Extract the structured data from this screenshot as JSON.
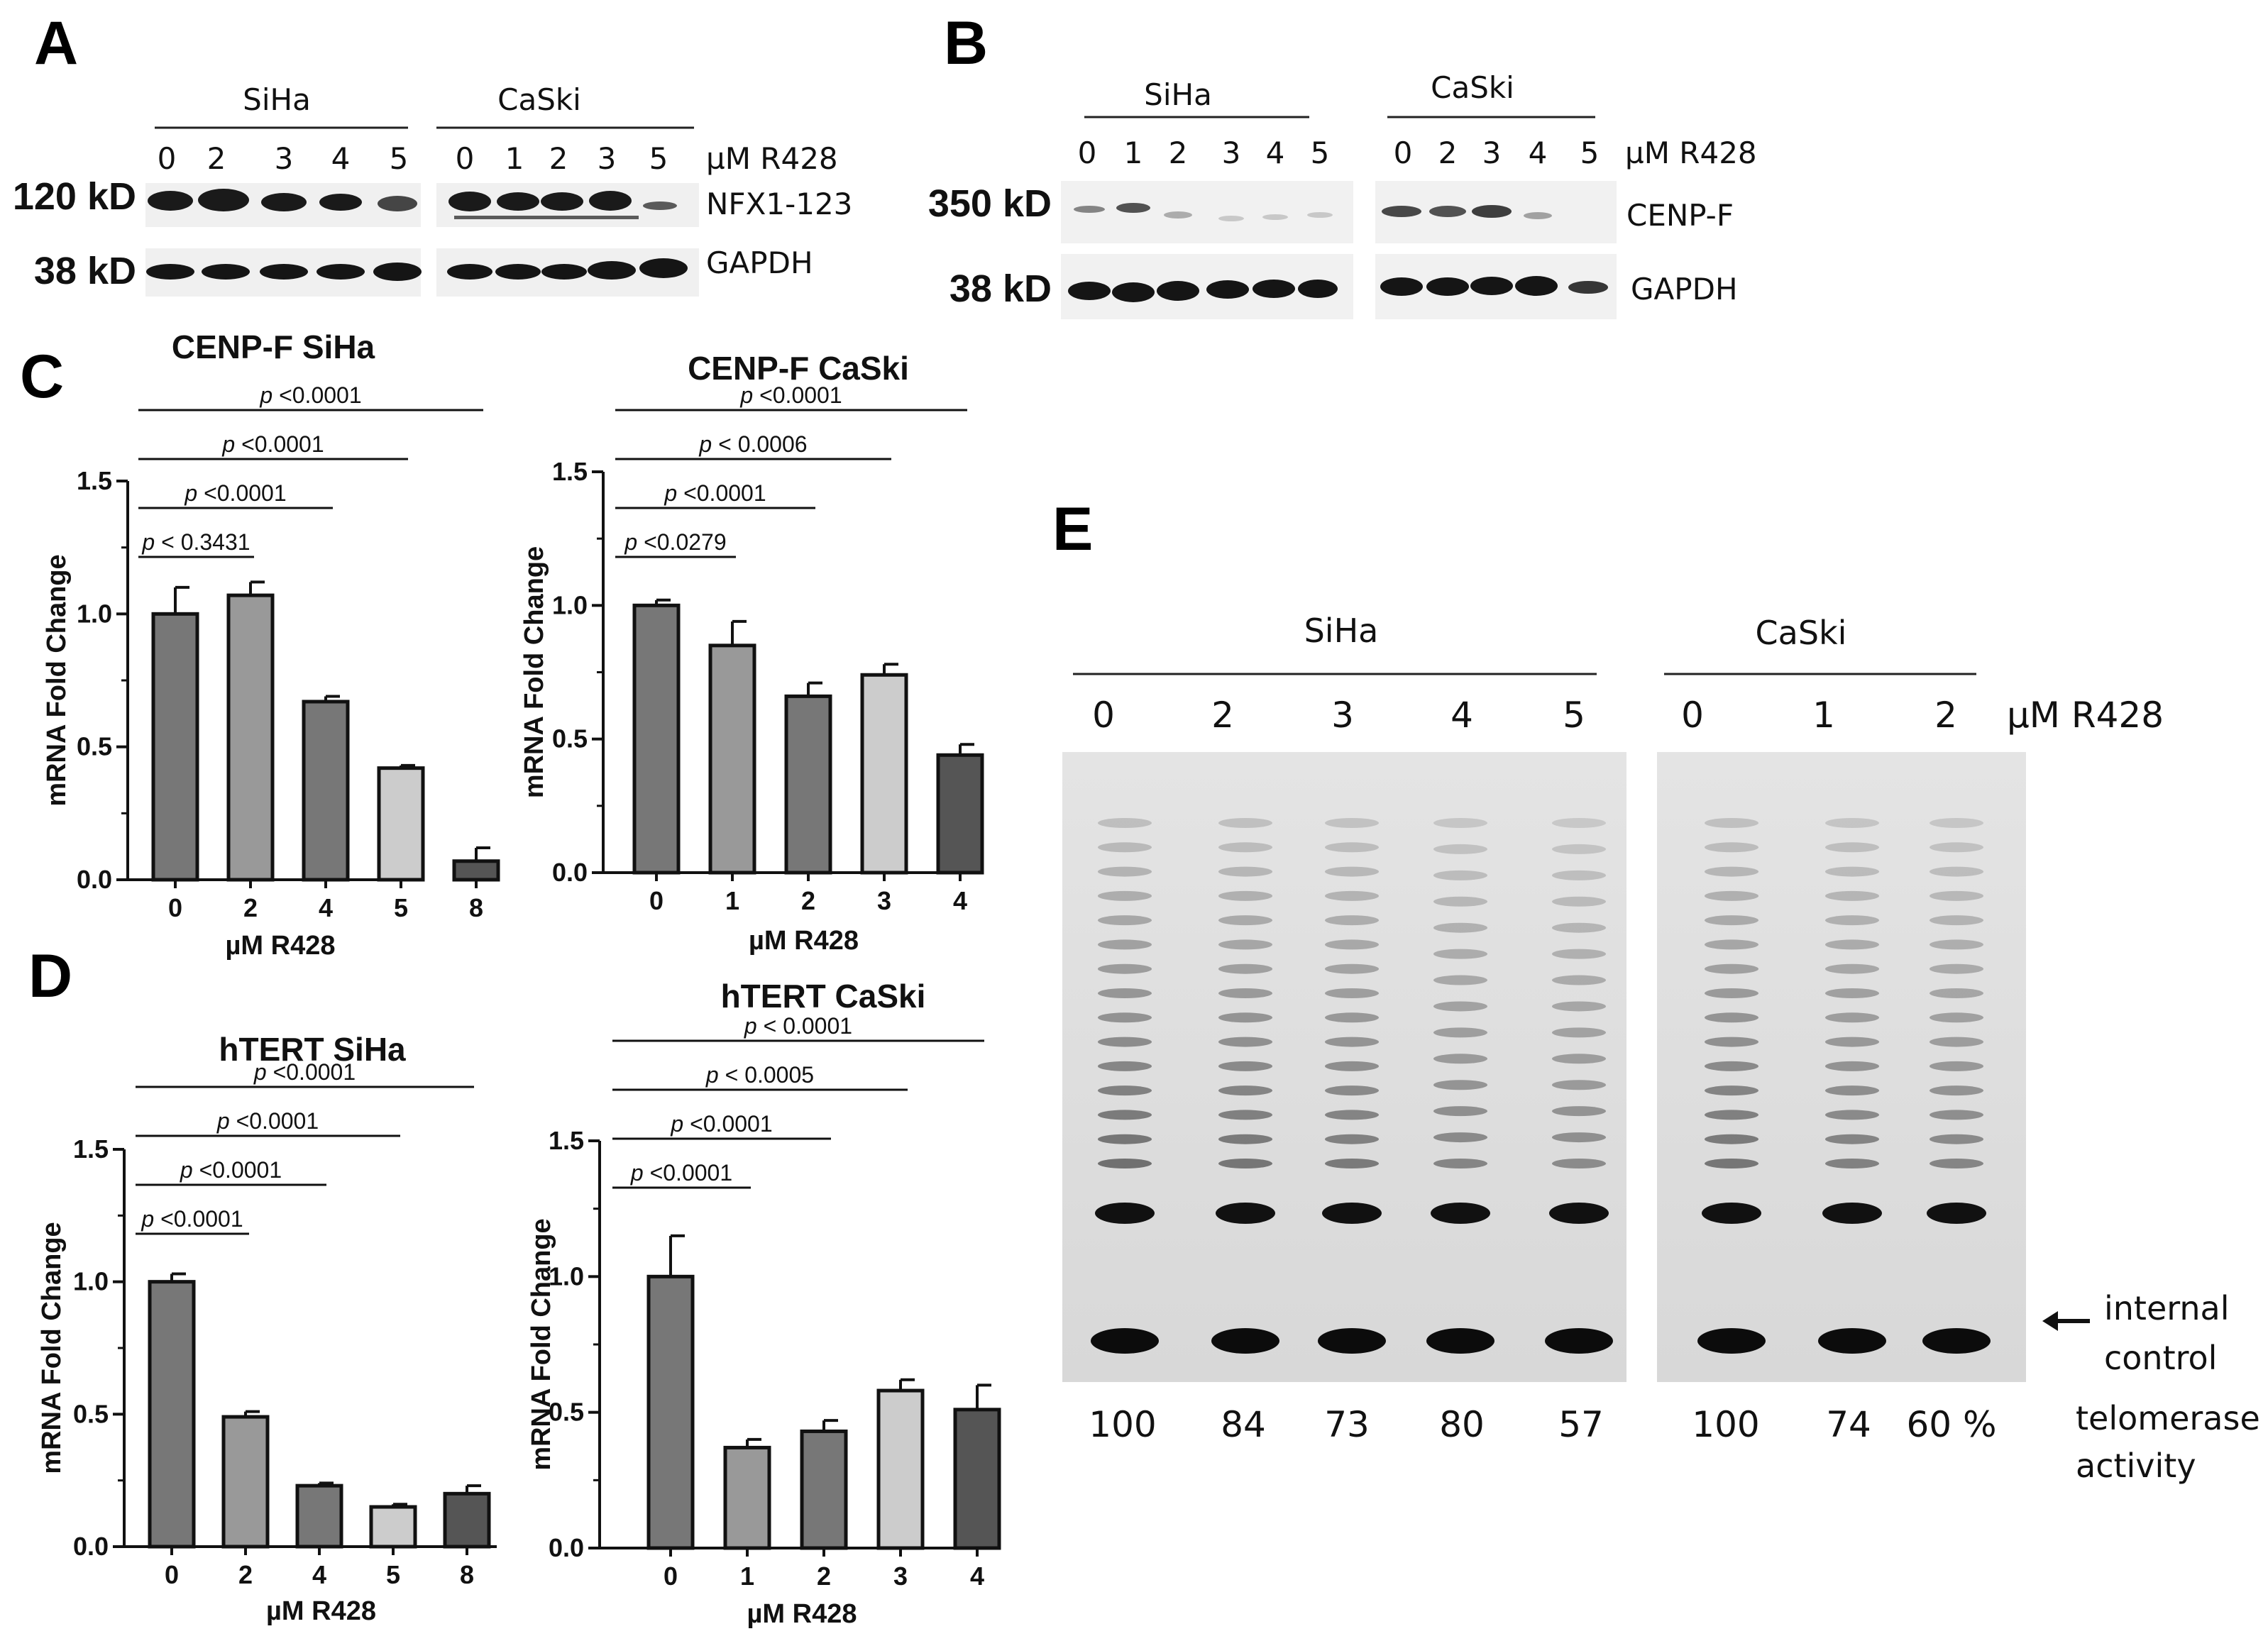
{
  "panels": {
    "A": "A",
    "B": "B",
    "C": "C",
    "D": "D",
    "E": "E"
  },
  "blotA": {
    "groups": [
      {
        "name": "SiHa",
        "lanes": [
          "0",
          "2",
          "3",
          "4",
          "5"
        ]
      },
      {
        "name": "CaSki",
        "lanes": [
          "0",
          "1",
          "2",
          "3",
          "5"
        ]
      }
    ],
    "unit": "µM R428",
    "rows": [
      {
        "kd": "120 kD",
        "protein": "NFX1-123"
      },
      {
        "kd": "38 kD",
        "protein": "GAPDH"
      }
    ]
  },
  "blotB": {
    "groups": [
      {
        "name": "SiHa",
        "lanes": [
          "0",
          "1",
          "2",
          "3",
          "4",
          "5"
        ]
      },
      {
        "name": "CaSki",
        "lanes": [
          "0",
          "2",
          "3",
          "4",
          "5"
        ]
      }
    ],
    "unit": "µM R428",
    "rows": [
      {
        "kd": "350 kD",
        "protein": "CENP-F"
      },
      {
        "kd": "38 kD",
        "protein": "GAPDH"
      }
    ]
  },
  "chart_data": [
    {
      "type": "bar",
      "title": "CENP-F SiHa",
      "xlabel": "µM R428",
      "ylabel": "mRNA Fold Change",
      "categories": [
        "0",
        "2",
        "4",
        "5",
        "8"
      ],
      "values": [
        1.0,
        1.07,
        0.67,
        0.42,
        0.07
      ],
      "errors": [
        0.1,
        0.05,
        0.02,
        0.01,
        0.05
      ],
      "ylim": [
        0,
        1.5
      ],
      "yticks": [
        "0.0",
        "0.5",
        "1.0",
        "1.5"
      ],
      "fills": [
        "#777777",
        "#999999",
        "#777777",
        "#cccccc",
        "#555555"
      ],
      "comparisons": [
        {
          "to": "2",
          "label": "< 0.3431"
        },
        {
          "to": "4",
          "label": "<0.0001"
        },
        {
          "to": "5",
          "label": "<0.0001"
        },
        {
          "to": "8",
          "label": "<0.0001"
        }
      ]
    },
    {
      "type": "bar",
      "title": "CENP-F CaSki",
      "xlabel": "µM R428",
      "ylabel": "mRNA Fold Change",
      "categories": [
        "0",
        "1",
        "2",
        "3",
        "4"
      ],
      "values": [
        1.0,
        0.85,
        0.66,
        0.74,
        0.44
      ],
      "errors": [
        0.02,
        0.09,
        0.05,
        0.04,
        0.04
      ],
      "ylim": [
        0,
        1.5
      ],
      "yticks": [
        "0.0",
        "0.5",
        "1.0",
        "1.5"
      ],
      "fills": [
        "#777777",
        "#999999",
        "#777777",
        "#cccccc",
        "#555555"
      ],
      "comparisons": [
        {
          "to": "1",
          "label": "<0.0279"
        },
        {
          "to": "2",
          "label": "<0.0001"
        },
        {
          "to": "3",
          "label": "< 0.0006"
        },
        {
          "to": "4",
          "label": "<0.0001"
        }
      ]
    },
    {
      "type": "bar",
      "title": "hTERT SiHa",
      "xlabel": "µM R428",
      "ylabel": "mRNA Fold Change",
      "categories": [
        "0",
        "2",
        "4",
        "5",
        "8"
      ],
      "values": [
        1.0,
        0.49,
        0.23,
        0.15,
        0.2
      ],
      "errors": [
        0.03,
        0.02,
        0.01,
        0.01,
        0.03
      ],
      "ylim": [
        0,
        1.5
      ],
      "yticks": [
        "0.0",
        "0.5",
        "1.0",
        "1.5"
      ],
      "fills": [
        "#777777",
        "#999999",
        "#777777",
        "#cccccc",
        "#555555"
      ],
      "comparisons": [
        {
          "to": "2",
          "label": "<0.0001"
        },
        {
          "to": "4",
          "label": "<0.0001"
        },
        {
          "to": "5",
          "label": "<0.0001"
        },
        {
          "to": "8",
          "label": "<0.0001"
        }
      ]
    },
    {
      "type": "bar",
      "title": "hTERT CaSki",
      "xlabel": "µM R428",
      "ylabel": "mRNA Fold Change",
      "categories": [
        "0",
        "1",
        "2",
        "3",
        "4"
      ],
      "values": [
        1.0,
        0.37,
        0.43,
        0.58,
        0.51
      ],
      "errors": [
        0.15,
        0.03,
        0.04,
        0.04,
        0.09
      ],
      "ylim": [
        0,
        1.5
      ],
      "yticks": [
        "0.0",
        "0.5",
        "1.0",
        "1.5"
      ],
      "fills": [
        "#777777",
        "#999999",
        "#777777",
        "#cccccc",
        "#555555"
      ],
      "comparisons": [
        {
          "to": "1",
          "label": "<0.0001"
        },
        {
          "to": "2",
          "label": "<0.0001"
        },
        {
          "to": "3",
          "label": "< 0.0005"
        },
        {
          "to": "4",
          "label": "< 0.0001"
        }
      ]
    }
  ],
  "p_prefix": "p",
  "gelE": {
    "groups": [
      {
        "name": "SiHa",
        "lanes": [
          "0",
          "2",
          "3",
          "4",
          "5"
        ],
        "activity": [
          "100",
          "84",
          "73",
          "80",
          "57"
        ]
      },
      {
        "name": "CaSki",
        "lanes": [
          "0",
          "1",
          "2"
        ],
        "activity": [
          "100",
          "74",
          "60 %"
        ]
      }
    ],
    "unit": "µM R428",
    "internal_control": [
      "internal",
      "control"
    ],
    "activity_label": [
      "telomerase",
      "activity"
    ]
  }
}
